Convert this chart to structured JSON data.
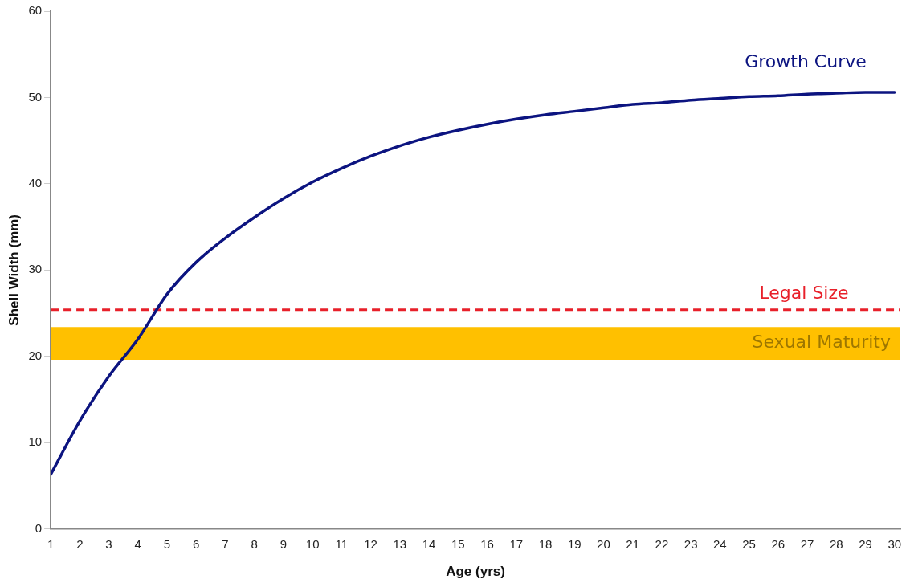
{
  "chart_data": {
    "type": "line",
    "xlabel": "Age (yrs)",
    "ylabel": "Shell Width (mm)",
    "x": [
      1,
      2,
      3,
      4,
      5,
      6,
      7,
      8,
      9,
      10,
      11,
      12,
      13,
      14,
      15,
      16,
      17,
      18,
      19,
      20,
      21,
      22,
      23,
      24,
      25,
      26,
      27,
      28,
      29,
      30
    ],
    "series": [
      {
        "name": "Growth Curve",
        "color": "#0c1480",
        "values": [
          6.3,
          12.5,
          17.7,
          22.0,
          27.2,
          30.9,
          33.7,
          36.1,
          38.3,
          40.2,
          41.8,
          43.2,
          44.4,
          45.4,
          46.2,
          46.9,
          47.5,
          48.0,
          48.4,
          48.8,
          49.2,
          49.4,
          49.7,
          49.9,
          50.1,
          50.2,
          50.4,
          50.5,
          50.6,
          50.6
        ]
      }
    ],
    "xlim": [
      1,
      30.2
    ],
    "xticks": [
      1,
      2,
      3,
      4,
      5,
      6,
      7,
      8,
      9,
      10,
      11,
      12,
      13,
      14,
      15,
      16,
      17,
      18,
      19,
      20,
      21,
      22,
      23,
      24,
      25,
      26,
      27,
      28,
      29,
      30
    ],
    "ylim": [
      0,
      60
    ],
    "yticks": [
      0,
      10,
      20,
      30,
      40,
      50,
      60
    ],
    "ref_lines": [
      {
        "axis": "y",
        "value": 25.4,
        "label": "Legal Size",
        "color": "#e8202a",
        "line_style": "dashed"
      }
    ],
    "bands": [
      {
        "axis": "y",
        "from": 19.6,
        "to": 23.4,
        "label": "Sexual Maturity",
        "color": "#ffc000"
      }
    ],
    "grid": false,
    "legend": false,
    "marker": "none",
    "line_style": "solid"
  }
}
